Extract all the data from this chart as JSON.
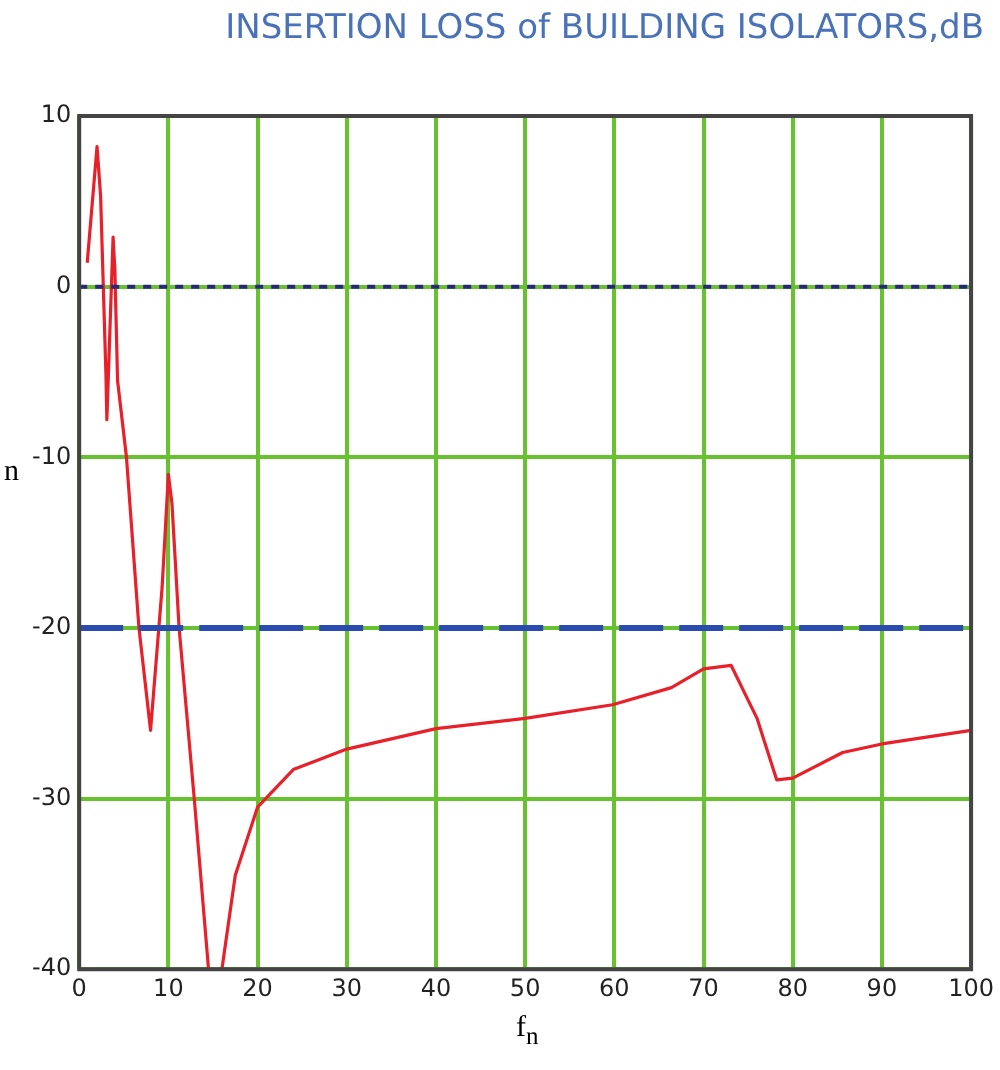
{
  "chart_data": {
    "type": "line",
    "title": "INSERTION LOSS of BUILDING ISOLATORS,dB",
    "xlabel": "f$_{n}$",
    "ylabel": "n",
    "x": [
      0.9,
      2,
      2.4,
      3,
      3.1,
      3.8,
      4,
      4.3,
      5.3,
      6.7,
      8,
      9.3,
      10,
      10.4,
      11.2,
      12.9,
      14.5,
      15.2,
      16,
      17.5,
      20,
      24,
      30,
      40,
      50,
      59.8,
      66.4,
      70,
      73.1,
      76,
      78.2,
      80,
      85.6,
      90,
      100
    ],
    "series": [
      {
        "color": "#e8202a",
        "values": [
          1.4,
          8.2,
          5.3,
          -5.2,
          -7.8,
          2.9,
          1,
          -5.5,
          -10,
          -20,
          -26,
          -17.6,
          -11,
          -12.7,
          -20,
          -30,
          -40,
          null,
          -40,
          -34.5,
          -30.5,
          -28.3,
          -27.1,
          -25.9,
          -25.3,
          -24.5,
          -23.5,
          -22.4,
          -22.2,
          -25.3,
          -28.9,
          -28.8,
          -27.3,
          -26.8,
          -26
        ]
      }
    ],
    "xlim": [
      0,
      100
    ],
    "xticks": [
      0,
      10,
      20,
      30,
      40,
      50,
      60,
      70,
      80,
      90,
      100
    ],
    "ylim": [
      -40,
      10
    ],
    "yticks": [
      -40,
      -30,
      -20,
      -10,
      0,
      10
    ],
    "ref_lines": [
      {
        "axis": "y",
        "value": 0,
        "color": "#28287a",
        "line_style": "dotted"
      },
      {
        "axis": "y",
        "value": -20,
        "color": "#2a4cb0",
        "line_style": "dashed"
      }
    ],
    "grid": true,
    "legend": false,
    "marker": "none",
    "line_style": "solid"
  }
}
